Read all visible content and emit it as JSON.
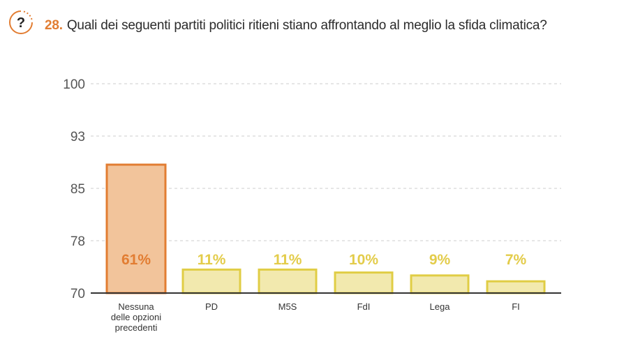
{
  "header": {
    "number": "28.",
    "question": "Quali dei seguenti partiti politici ritieni stiano affrontando al meglio la sfida climatica?",
    "icon_label": "?",
    "icon": "question-icon"
  },
  "chart_data": {
    "type": "bar",
    "title": "",
    "xlabel": "",
    "ylabel": "",
    "ylim": [
      70,
      100
    ],
    "yticks": [
      "100",
      "93",
      "85",
      "78",
      "70"
    ],
    "grid": true,
    "categories": [
      [
        "Nessuna",
        "delle opzioni",
        "precedenti"
      ],
      [
        "PD"
      ],
      [
        "M5S"
      ],
      [
        "FdI"
      ],
      [
        "Lega"
      ],
      [
        "FI"
      ]
    ],
    "values": [
      61,
      11,
      11,
      10,
      9,
      7
    ],
    "value_labels": [
      "61%",
      "11%",
      "11%",
      "10%",
      "9%",
      "7%"
    ],
    "colors": {
      "highlight_fill": "#f2c49b",
      "highlight_stroke": "#e27d32",
      "highlight_label": "#e27d32",
      "bar_fill": "#f2e9ae",
      "bar_stroke": "#e0cd45",
      "bar_label": "#e3cc4a",
      "axis": "#333333",
      "grid": "#cccccc",
      "tick_text": "#555555"
    }
  }
}
